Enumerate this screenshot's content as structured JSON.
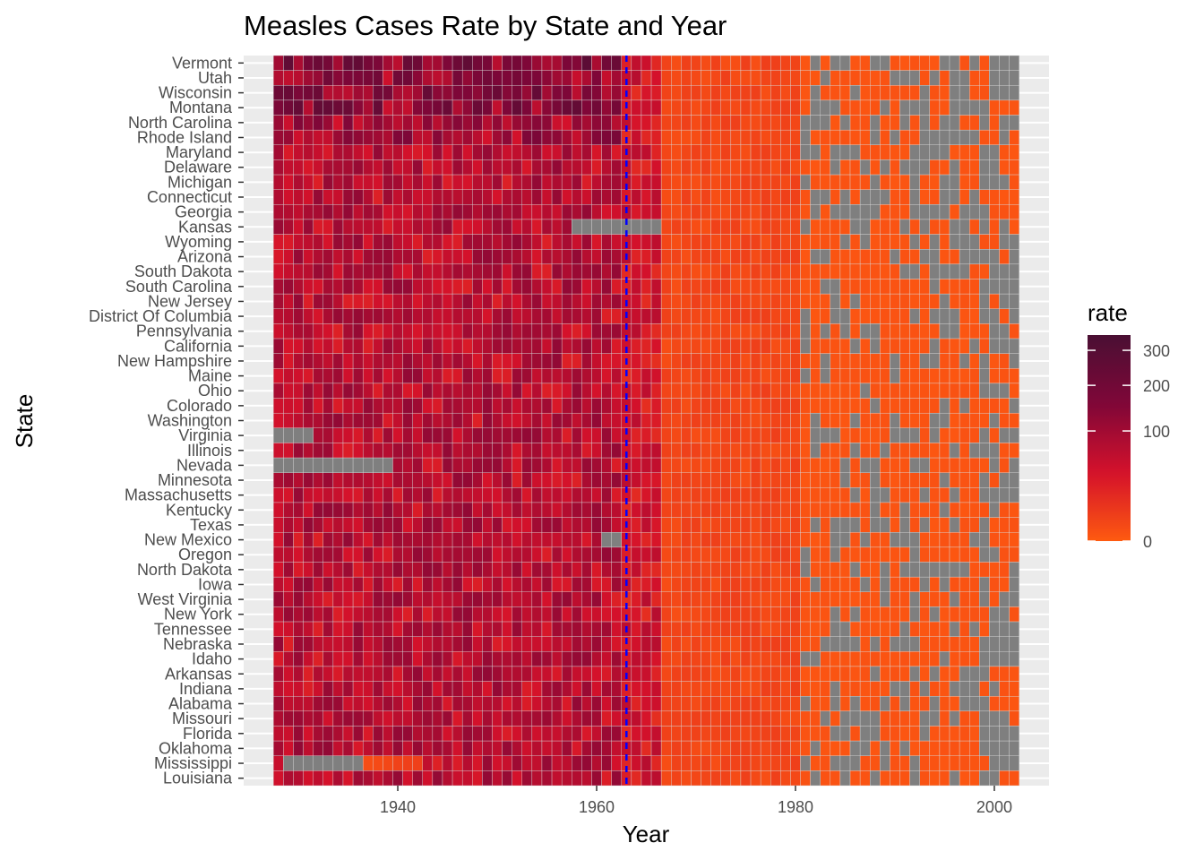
{
  "chart_data": {
    "type": "heatmap",
    "title": "Measles Cases Rate by State and Year",
    "xlabel": "Year",
    "ylabel": "State",
    "x_range": [
      1928,
      2002
    ],
    "xlim": [
      1924.5,
      2005.5
    ],
    "x_ticks": [
      1940,
      1960,
      1980,
      2000
    ],
    "vaccine_line_year": 1963,
    "vaccine_line_color": "#0000ff",
    "states_top_to_bottom": [
      "Vermont",
      "Utah",
      "Wisconsin",
      "Montana",
      "North Carolina",
      "Rhode Island",
      "Maryland",
      "Delaware",
      "Michigan",
      "Connecticut",
      "Georgia",
      "Kansas",
      "Wyoming",
      "Arizona",
      "South Dakota",
      "South Carolina",
      "New Jersey",
      "District Of Columbia",
      "Pennsylvania",
      "California",
      "New Hampshire",
      "Maine",
      "Ohio",
      "Colorado",
      "Washington",
      "Virginia",
      "Illinois",
      "Nevada",
      "Minnesota",
      "Massachusetts",
      "Kentucky",
      "Texas",
      "New Mexico",
      "Oregon",
      "North Dakota",
      "Iowa",
      "West Virginia",
      "New York",
      "Tennessee",
      "Nebraska",
      "Idaho",
      "Arkansas",
      "Indiana",
      "Alabama",
      "Missouri",
      "Florida",
      "Oklahoma",
      "Mississippi",
      "Louisiana"
    ],
    "typical_rate_by_period": [
      {
        "years": [
          1928,
          1962
        ],
        "rate": 70
      },
      {
        "years": [
          1963,
          1966
        ],
        "rate": 40
      },
      {
        "years": [
          1967,
          1980
        ],
        "rate": 3
      },
      {
        "years": [
          1981,
          2002
        ],
        "rate": 0.3
      }
    ],
    "peak_state_rates_1928_1962": {
      "Vermont": 160,
      "Utah": 120,
      "Wisconsin": 140,
      "Montana": 140,
      "North Carolina": 90,
      "Rhode Island": 100
    },
    "missing_cells": [
      {
        "state": "Virginia",
        "years": [
          1928,
          1931
        ]
      },
      {
        "state": "Nevada",
        "years": [
          1928,
          1939
        ]
      },
      {
        "state": "Mississippi",
        "years": [
          1929,
          1936
        ]
      },
      {
        "state": "Kansas",
        "years": [
          1958,
          1966
        ]
      },
      {
        "state": "New Mexico",
        "years": [
          1961,
          1962
        ]
      }
    ],
    "missing_color": "#7f7f7f",
    "legend": {
      "title": "rate",
      "ticks": [
        0,
        100,
        200,
        300
      ],
      "scale": "sqrt",
      "range": [
        0,
        350
      ],
      "colors": [
        "#fe5a10",
        "#d4112b",
        "#7f0738",
        "#4a0f33"
      ],
      "position": "right"
    },
    "panel_background": "#ebebeb",
    "grid": true
  }
}
